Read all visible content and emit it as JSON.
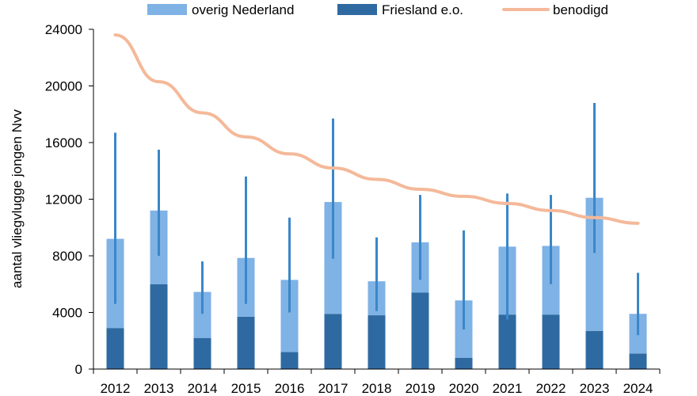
{
  "chart_data": {
    "type": "bar",
    "stacked": true,
    "categories": [
      "2012",
      "2013",
      "2014",
      "2015",
      "2016",
      "2017",
      "2018",
      "2019",
      "2020",
      "2021",
      "2022",
      "2023",
      "2024"
    ],
    "series": [
      {
        "name": "Friesland e.o.",
        "color": "#2e6aa1",
        "values": [
          2900,
          6000,
          2200,
          3700,
          1200,
          3900,
          3800,
          5400,
          800,
          3850,
          3850,
          2700,
          1100
        ]
      },
      {
        "name": "overig Nederland",
        "color": "#7fb2e5",
        "values": [
          6300,
          5200,
          3250,
          4150,
          5100,
          7900,
          2400,
          3550,
          4050,
          4800,
          4850,
          9400,
          2800
        ]
      }
    ],
    "error_bars": {
      "color": "#3a87c9",
      "low": [
        4600,
        8000,
        3900,
        4600,
        4000,
        7800,
        4100,
        6300,
        2800,
        3500,
        6000,
        8200,
        2400
      ],
      "high": [
        16700,
        15500,
        7600,
        13600,
        10700,
        17700,
        9300,
        12300,
        9800,
        12400,
        12300,
        18800,
        6800
      ]
    },
    "line": {
      "name": "benodigd",
      "color": "#f4b99a",
      "x": [
        "2012",
        "2013",
        "2014",
        "2015",
        "2016",
        "2017",
        "2018",
        "2019",
        "2020",
        "2021",
        "2022",
        "2023",
        "2024"
      ],
      "values": [
        23600,
        20300,
        18100,
        16400,
        15200,
        14200,
        13400,
        12700,
        12200,
        11700,
        11200,
        10700,
        10300
      ]
    },
    "ylabel": "aantal vliegvlugge jongen Nvv",
    "xlabel": "",
    "ylim": [
      0,
      24000
    ],
    "yticks": [
      0,
      4000,
      8000,
      12000,
      16000,
      20000,
      24000
    ],
    "legend": {
      "position": "top",
      "entries": [
        "overig Nederland",
        "Friesland e.o.",
        "benodigd"
      ]
    },
    "grid": false
  }
}
